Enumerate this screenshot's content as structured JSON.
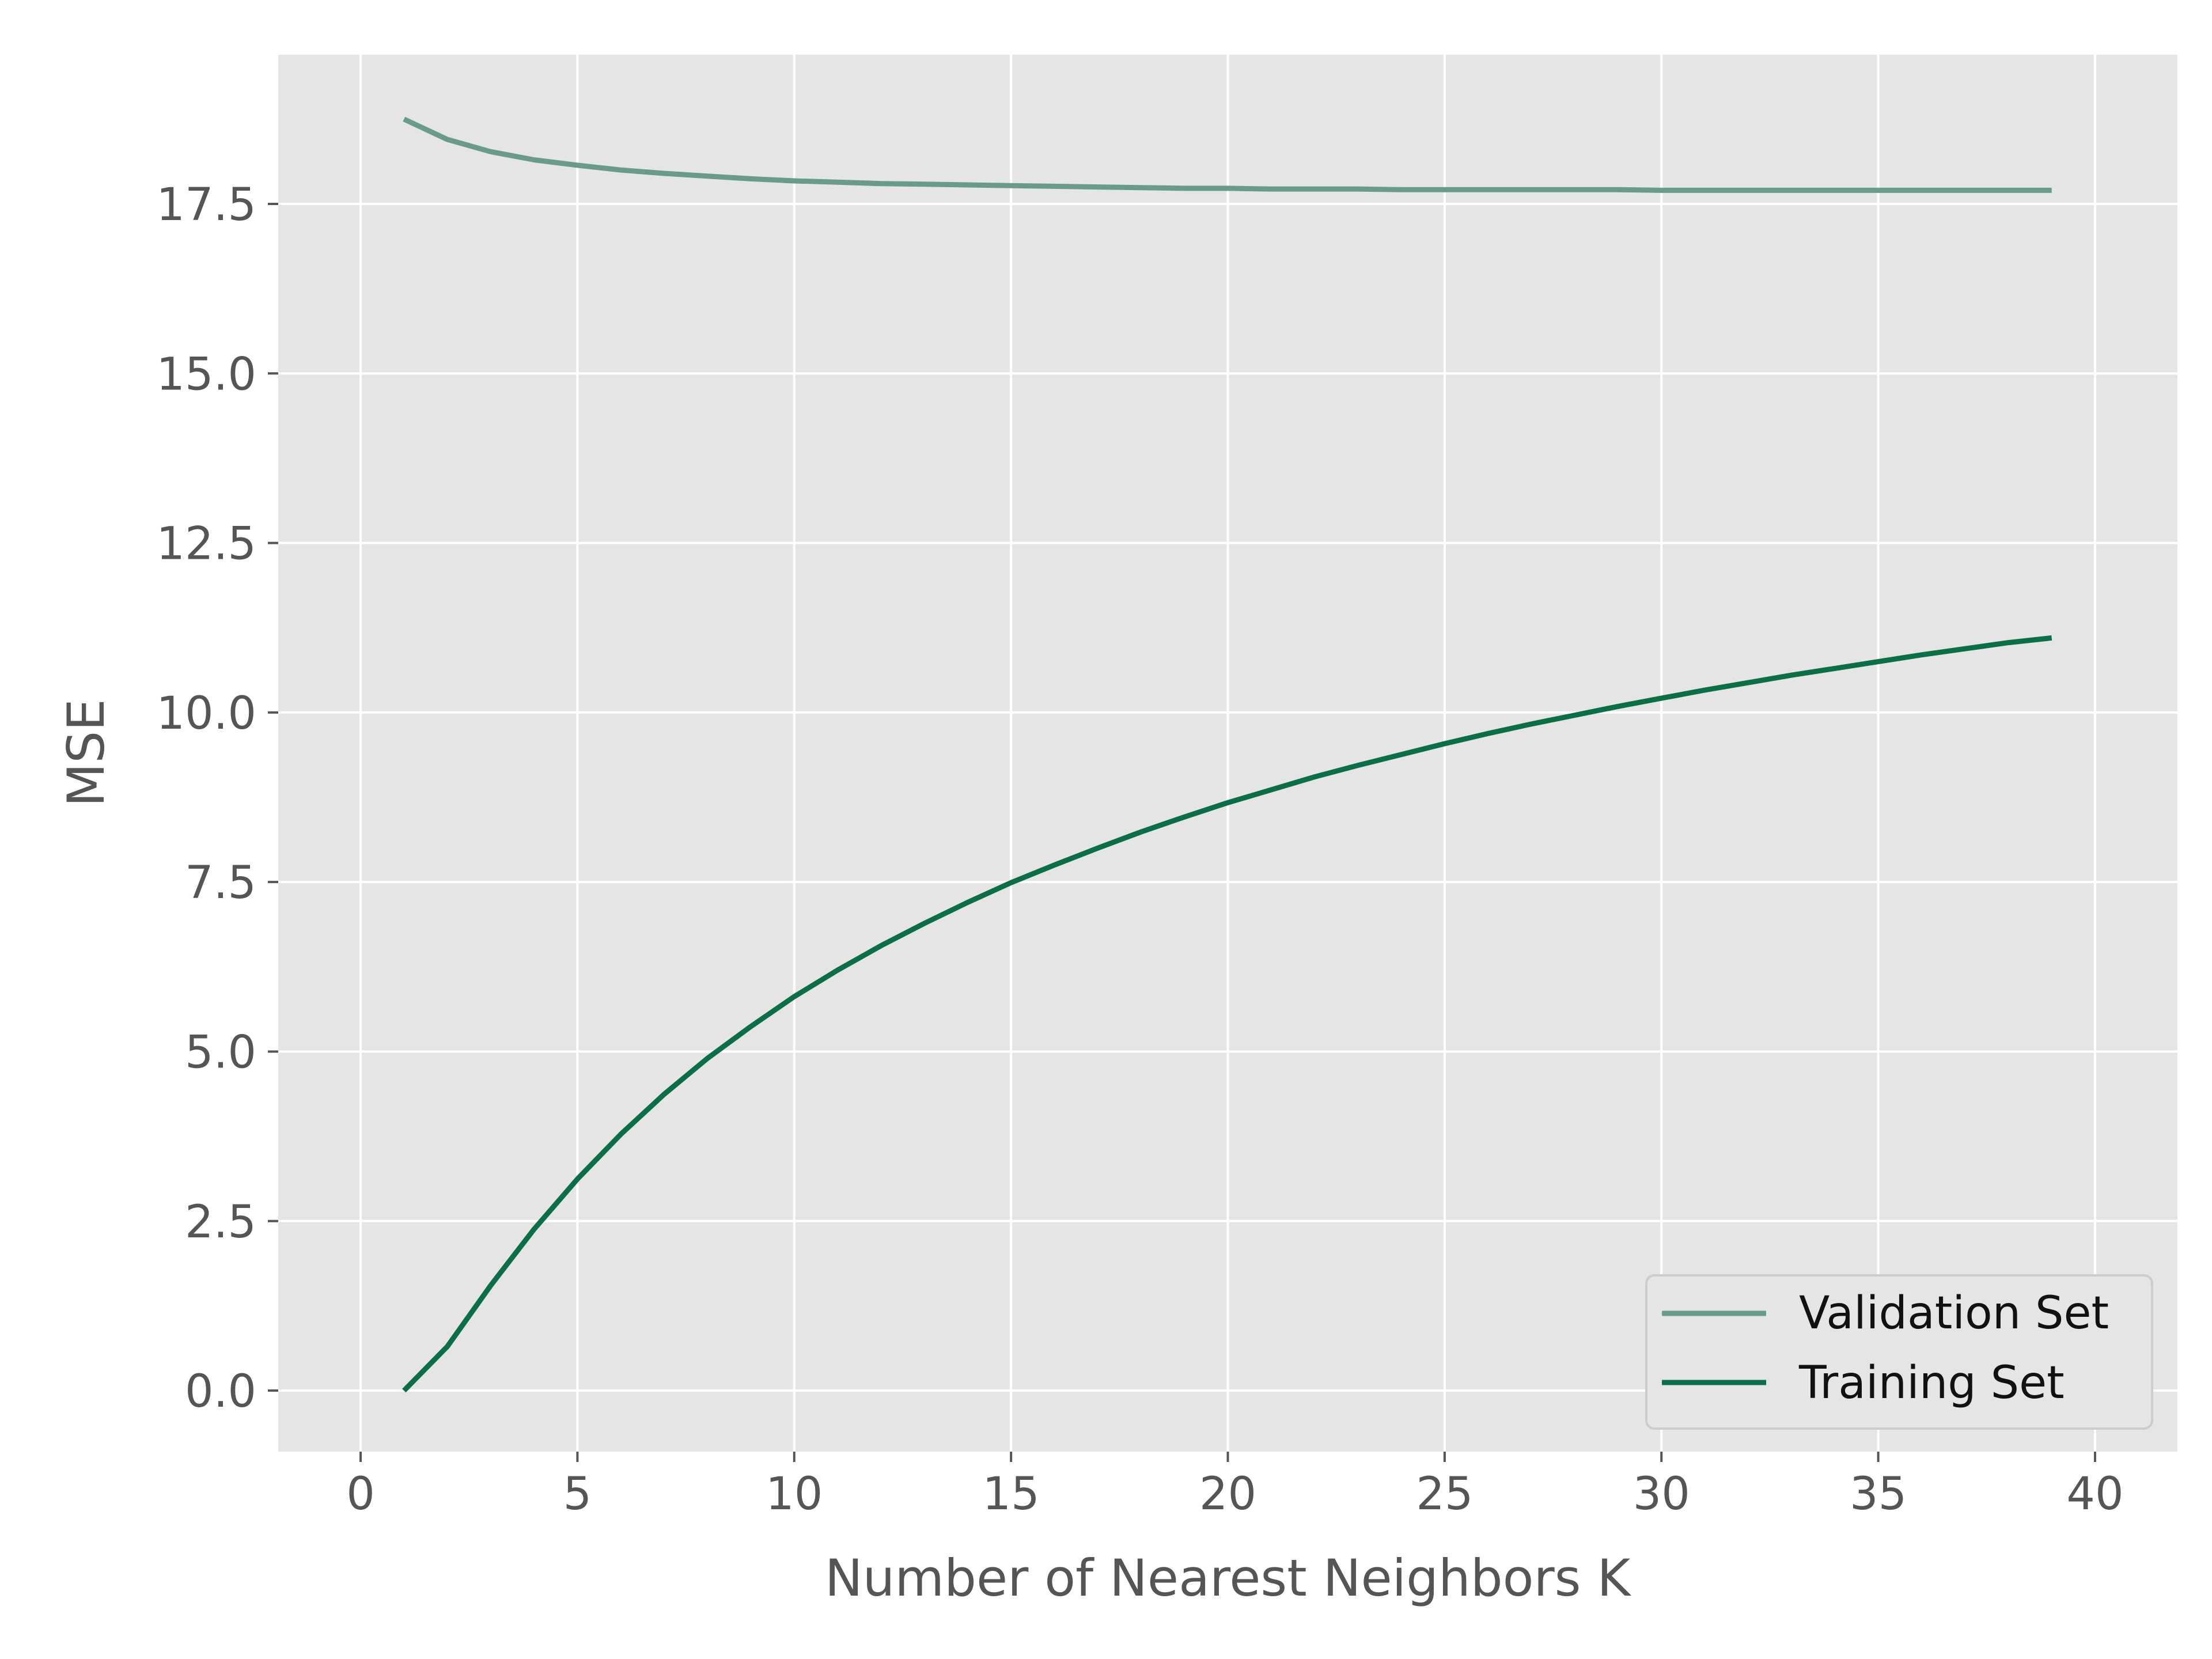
{
  "chart_data": {
    "type": "line",
    "title": "",
    "xlabel": "Number of Nearest Neighbors K",
    "ylabel": "MSE",
    "xlim": [
      -1.9,
      41.9
    ],
    "ylim": [
      -0.9,
      19.7
    ],
    "xticks": [
      0,
      5,
      10,
      15,
      20,
      25,
      30,
      35,
      40
    ],
    "xtick_labels": [
      "0",
      "5",
      "10",
      "15",
      "20",
      "25",
      "30",
      "35",
      "40"
    ],
    "yticks": [
      0,
      2.5,
      5,
      7.5,
      10,
      12.5,
      15,
      17.5
    ],
    "ytick_labels": [
      "0.0",
      "2.5",
      "5.0",
      "7.5",
      "10.0",
      "12.5",
      "15.0",
      "17.5"
    ],
    "grid": true,
    "legend_position": "lower-right",
    "x": [
      1,
      2,
      3,
      4,
      5,
      6,
      7,
      8,
      9,
      10,
      11,
      12,
      13,
      14,
      15,
      16,
      17,
      18,
      19,
      20,
      21,
      22,
      23,
      24,
      25,
      26,
      27,
      28,
      29,
      30,
      31,
      32,
      33,
      34,
      35,
      36,
      37,
      38,
      39
    ],
    "series": [
      {
        "name": "Validation Set",
        "color": "#6a9a88",
        "values": [
          18.75,
          18.45,
          18.27,
          18.15,
          18.07,
          18.0,
          17.95,
          17.91,
          17.87,
          17.84,
          17.82,
          17.8,
          17.79,
          17.78,
          17.77,
          17.76,
          17.75,
          17.74,
          17.73,
          17.73,
          17.72,
          17.72,
          17.72,
          17.71,
          17.71,
          17.71,
          17.71,
          17.71,
          17.71,
          17.7,
          17.7,
          17.7,
          17.7,
          17.7,
          17.7,
          17.7,
          17.7,
          17.7,
          17.7
        ]
      },
      {
        "name": "Training Set",
        "color": "#0b6e46",
        "values": [
          0.0,
          0.65,
          1.55,
          2.38,
          3.12,
          3.78,
          4.37,
          4.9,
          5.37,
          5.81,
          6.2,
          6.56,
          6.89,
          7.2,
          7.49,
          7.75,
          8.0,
          8.24,
          8.46,
          8.67,
          8.86,
          9.05,
          9.22,
          9.38,
          9.54,
          9.69,
          9.83,
          9.96,
          10.09,
          10.21,
          10.33,
          10.44,
          10.55,
          10.65,
          10.75,
          10.85,
          10.94,
          11.03,
          11.1
        ]
      }
    ]
  },
  "colors": {
    "plot_background": "#e5e5e5",
    "grid": "#ffffff",
    "tick_text": "#555555",
    "legend_text": "#111111",
    "legend_border": "#cccccc",
    "legend_background": "#e5e5e5"
  }
}
